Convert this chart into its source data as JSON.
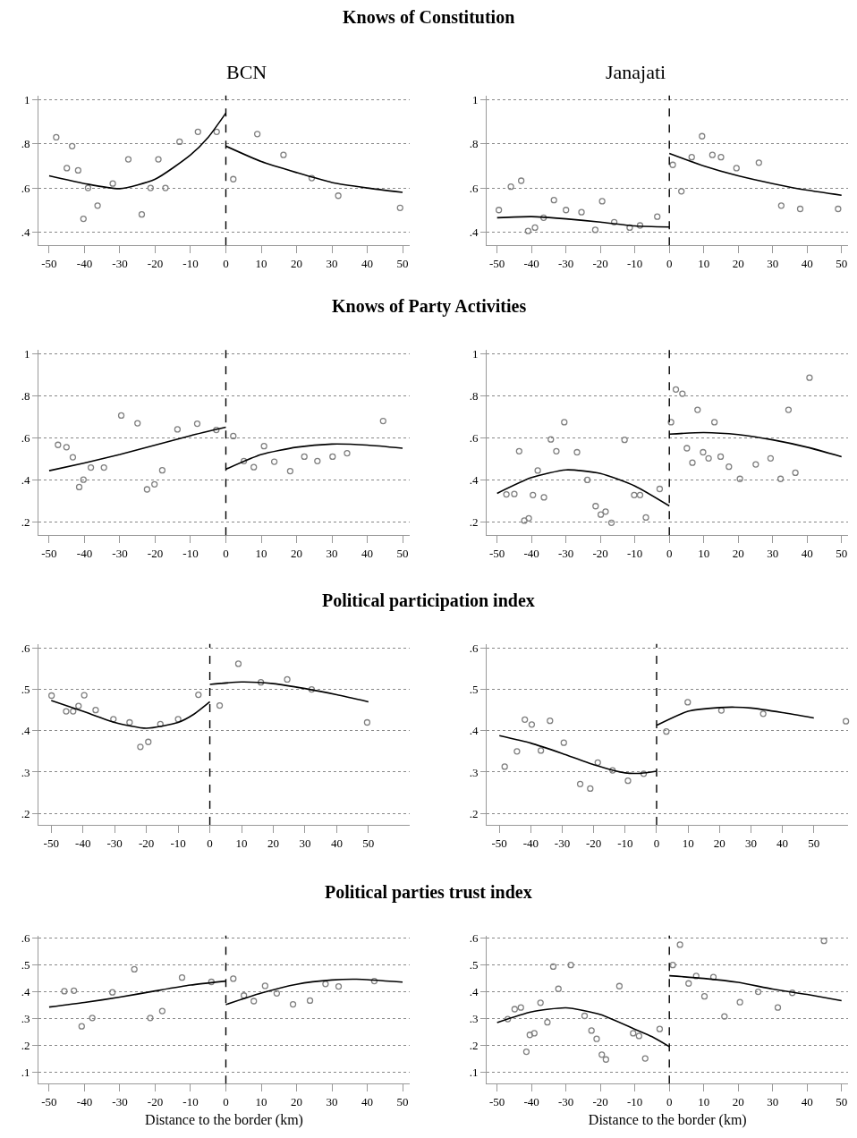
{
  "chart_data": [
    {
      "type": "scatter",
      "title": "Knows of Constitution",
      "subtitle": "BCN",
      "xlim": [
        -53,
        52
      ],
      "xticks": [
        -50,
        -40,
        -30,
        -20,
        -10,
        0,
        10,
        20,
        30,
        40,
        50
      ],
      "ylim": [
        0.34,
        1.02
      ],
      "yticks": [
        {
          "value": 0.4,
          "label": ".4"
        },
        {
          "value": 0.6,
          "label": ".6"
        },
        {
          "value": 0.8,
          "label": ".8"
        },
        1
      ],
      "grid": "y",
      "ref_lines": [
        {
          "axis": "x",
          "value": 0,
          "line_style": "dashed",
          "color": "#000000"
        }
      ],
      "series": [
        {
          "type": "scatter",
          "marker": "circle",
          "color": "#808080",
          "x": [
            -48,
            -45,
            -43.5,
            -41.8,
            -40.3,
            -39,
            -36.3,
            -32,
            -27.6,
            -23.8,
            -21.3,
            -19.1,
            -17.1,
            -13.1,
            -7.9,
            -2.6,
            2.1,
            8.9,
            16.3,
            24.3,
            31.8,
            49.3
          ],
          "values": [
            0.83,
            0.69,
            0.79,
            0.68,
            0.46,
            0.6,
            0.52,
            0.62,
            0.73,
            0.48,
            0.6,
            0.73,
            0.6,
            0.81,
            0.855,
            0.855,
            0.64,
            0.845,
            0.75,
            0.645,
            0.565,
            0.51
          ]
        },
        {
          "type": "line",
          "color": "#000000",
          "x": [
            -50,
            -40,
            -30,
            -20,
            -10,
            -5,
            0
          ],
          "values": [
            0.655,
            0.62,
            0.597,
            0.64,
            0.75,
            0.83,
            0.94
          ]
        },
        {
          "type": "line",
          "color": "#000000",
          "x": [
            0,
            10,
            20,
            30,
            40,
            50
          ],
          "values": [
            0.79,
            0.72,
            0.67,
            0.625,
            0.6,
            0.58
          ]
        }
      ]
    },
    {
      "type": "scatter",
      "subtitle": "Janajati",
      "xlim": [
        -53,
        52
      ],
      "xticks": [
        -50,
        -40,
        -30,
        -20,
        -10,
        0,
        10,
        20,
        30,
        40,
        50
      ],
      "ylim": [
        0.34,
        1.02
      ],
      "yticks": [
        {
          "value": 0.4,
          "label": ".4"
        },
        {
          "value": 0.6,
          "label": ".6"
        },
        {
          "value": 0.8,
          "label": ".8"
        },
        1
      ],
      "grid": "y",
      "ref_lines": [
        {
          "axis": "x",
          "value": 0,
          "line_style": "dashed",
          "color": "#000000"
        }
      ],
      "series": [
        {
          "type": "scatter",
          "marker": "circle",
          "color": "#808080",
          "x": [
            -49.5,
            -46,
            -43,
            -41,
            -39,
            -36.5,
            -33.5,
            -30,
            -25.5,
            -21.5,
            -19.5,
            -16,
            -11.5,
            -8.5,
            -3.5,
            1,
            3.5,
            6.5,
            9.5,
            12.5,
            15,
            19.5,
            26,
            32.5,
            38,
            49
          ],
          "values": [
            0.5,
            0.606,
            0.633,
            0.405,
            0.42,
            0.465,
            0.545,
            0.5,
            0.49,
            0.41,
            0.54,
            0.445,
            0.42,
            0.43,
            0.47,
            0.705,
            0.585,
            0.74,
            0.835,
            0.75,
            0.74,
            0.69,
            0.715,
            0.52,
            0.505,
            0.505
          ]
        },
        {
          "type": "line",
          "color": "#000000",
          "x": [
            -50,
            -40,
            -30,
            -20,
            -10,
            0
          ],
          "values": [
            0.465,
            0.47,
            0.46,
            0.445,
            0.428,
            0.423
          ]
        },
        {
          "type": "line",
          "color": "#000000",
          "x": [
            0,
            10,
            20,
            30,
            40,
            50
          ],
          "values": [
            0.757,
            0.7,
            0.655,
            0.62,
            0.59,
            0.567
          ]
        }
      ]
    },
    {
      "type": "scatter",
      "title": "Knows of Party Activities",
      "xlim": [
        -53,
        52
      ],
      "xticks": [
        -50,
        -40,
        -30,
        -20,
        -10,
        0,
        10,
        20,
        30,
        40,
        50
      ],
      "ylim": [
        0.136,
        1.02
      ],
      "yticks": [
        {
          "value": 0.2,
          "label": ".2"
        },
        {
          "value": 0.4,
          "label": ".4"
        },
        {
          "value": 0.6,
          "label": ".6"
        },
        {
          "value": 0.8,
          "label": ".8"
        },
        1
      ],
      "grid": "y",
      "ref_lines": [
        {
          "axis": "x",
          "value": 0,
          "line_style": "dashed",
          "color": "#000000"
        }
      ],
      "series": [
        {
          "type": "scatter",
          "marker": "circle",
          "color": "#808080",
          "x": [
            -47.5,
            -45.1,
            -43.3,
            -41.5,
            -40.3,
            -38.2,
            -34.5,
            -29.6,
            -25,
            -22.3,
            -20.2,
            -18,
            -13.7,
            -8.1,
            -2.7,
            2.1,
            5.1,
            7.9,
            10.8,
            13.7,
            18.2,
            22.2,
            25.9,
            30.2,
            34.3,
            44.5
          ],
          "values": [
            0.566,
            0.555,
            0.507,
            0.365,
            0.4,
            0.458,
            0.458,
            0.706,
            0.669,
            0.354,
            0.378,
            0.445,
            0.64,
            0.667,
            0.637,
            0.608,
            0.489,
            0.46,
            0.56,
            0.486,
            0.441,
            0.51,
            0.489,
            0.51,
            0.526,
            0.68
          ]
        },
        {
          "type": "line",
          "color": "#000000",
          "x": [
            -50,
            -40,
            -30,
            -20,
            -10,
            0
          ],
          "values": [
            0.443,
            0.48,
            0.52,
            0.565,
            0.61,
            0.65
          ]
        },
        {
          "type": "line",
          "color": "#000000",
          "x": [
            0,
            10,
            20,
            30,
            40,
            50
          ],
          "values": [
            0.45,
            0.52,
            0.555,
            0.57,
            0.565,
            0.55
          ]
        }
      ]
    },
    {
      "type": "scatter",
      "xlim": [
        -53,
        52
      ],
      "xticks": [
        -50,
        -40,
        -30,
        -20,
        -10,
        0,
        10,
        20,
        30,
        40,
        50
      ],
      "ylim": [
        0.136,
        1.02
      ],
      "yticks": [
        {
          "value": 0.2,
          "label": ".2"
        },
        {
          "value": 0.4,
          "label": ".4"
        },
        {
          "value": 0.6,
          "label": ".6"
        },
        {
          "value": 0.8,
          "label": ".8"
        },
        1
      ],
      "grid": "y",
      "ref_lines": [
        {
          "axis": "x",
          "value": 0,
          "line_style": "dashed",
          "color": "#000000"
        }
      ],
      "series": [
        {
          "type": "scatter",
          "marker": "circle",
          "color": "#808080",
          "x": [
            -47.3,
            -45,
            -43.6,
            -42.1,
            -40.8,
            -39.6,
            -38.2,
            -36.4,
            -34.4,
            -32.8,
            -30.5,
            -26.8,
            -23.8,
            -21.4,
            -19.9,
            -18.5,
            -16.8,
            -13,
            -10.2,
            -8.5,
            -6.8,
            -2.8,
            0.5,
            1.9,
            3.8,
            5.1,
            6.7,
            8.2,
            9.8,
            11.4,
            13.1,
            14.9,
            17.3,
            20.5,
            25.1,
            29.4,
            32.3,
            34.6,
            36.6,
            40.7
          ],
          "values": [
            0.33,
            0.332,
            0.536,
            0.205,
            0.216,
            0.327,
            0.444,
            0.316,
            0.592,
            0.536,
            0.674,
            0.531,
            0.399,
            0.274,
            0.234,
            0.248,
            0.195,
            0.59,
            0.327,
            0.327,
            0.22,
            0.356,
            0.674,
            0.83,
            0.81,
            0.55,
            0.481,
            0.733,
            0.531,
            0.502,
            0.674,
            0.51,
            0.462,
            0.404,
            0.473,
            0.502,
            0.404,
            0.733,
            0.433,
            0.886
          ]
        },
        {
          "type": "line",
          "color": "#000000",
          "x": [
            -50,
            -40,
            -30,
            -20,
            -10,
            0
          ],
          "values": [
            0.335,
            0.41,
            0.447,
            0.43,
            0.37,
            0.275
          ]
        },
        {
          "type": "line",
          "color": "#000000",
          "x": [
            0,
            10,
            20,
            30,
            40,
            50
          ],
          "values": [
            0.617,
            0.625,
            0.615,
            0.59,
            0.555,
            0.51
          ]
        }
      ]
    },
    {
      "type": "scatter",
      "title": "Political participation index",
      "xlim": [
        -54,
        63
      ],
      "xticks": [
        -50,
        -40,
        -30,
        -20,
        -10,
        0,
        10,
        20,
        30,
        40,
        50
      ],
      "ylim": [
        0.172,
        0.61
      ],
      "yticks": [
        {
          "value": 0.2,
          "label": ".2"
        },
        {
          "value": 0.3,
          "label": ".3"
        },
        {
          "value": 0.4,
          "label": ".4"
        },
        {
          "value": 0.5,
          "label": ".5"
        },
        {
          "value": 0.6,
          "label": ".6"
        }
      ],
      "grid": "y",
      "ref_lines": [
        {
          "axis": "x",
          "value": 0,
          "line_style": "dashed",
          "color": "#000000"
        }
      ],
      "series": [
        {
          "type": "scatter",
          "marker": "circle",
          "color": "#808080",
          "x": [
            -49.9,
            -45.3,
            -43.1,
            -41.4,
            -39.6,
            -36,
            -30.4,
            -25.3,
            -21.9,
            -19.4,
            -15.6,
            -10,
            -3.6,
            3.1,
            9,
            16.1,
            24.4,
            32.1,
            49.6
          ],
          "values": [
            0.485,
            0.447,
            0.447,
            0.46,
            0.486,
            0.45,
            0.428,
            0.42,
            0.361,
            0.373,
            0.416,
            0.428,
            0.487,
            0.461,
            0.562,
            0.517,
            0.524,
            0.5,
            0.42
          ]
        },
        {
          "type": "line",
          "color": "#000000",
          "x": [
            -50,
            -40,
            -30,
            -20,
            -10,
            -5,
            0
          ],
          "values": [
            0.473,
            0.447,
            0.42,
            0.406,
            0.42,
            0.44,
            0.47
          ]
        },
        {
          "type": "line",
          "color": "#000000",
          "x": [
            0,
            10,
            20,
            30,
            40,
            50
          ],
          "values": [
            0.512,
            0.518,
            0.514,
            0.502,
            0.487,
            0.47
          ]
        }
      ]
    },
    {
      "type": "scatter",
      "xlim": [
        -54,
        61
      ],
      "xticks": [
        -50,
        -40,
        -30,
        -20,
        -10,
        0,
        10,
        20,
        30,
        40,
        50
      ],
      "ylim": [
        0.172,
        0.61
      ],
      "yticks": [
        {
          "value": 0.2,
          "label": ".2"
        },
        {
          "value": 0.3,
          "label": ".3"
        },
        {
          "value": 0.4,
          "label": ".4"
        },
        {
          "value": 0.5,
          "label": ".5"
        },
        {
          "value": 0.6,
          "label": ".6"
        }
      ],
      "grid": "y",
      "ref_lines": [
        {
          "axis": "x",
          "value": 0,
          "line_style": "dashed",
          "color": "#000000"
        }
      ],
      "series": [
        {
          "type": "scatter",
          "marker": "circle",
          "color": "#808080",
          "x": [
            -48.3,
            -44.4,
            -41.9,
            -39.7,
            -36.8,
            -33.9,
            -29.5,
            -24.3,
            -21.1,
            -18.7,
            -14,
            -9.1,
            -4.1,
            3.1,
            9.9,
            20.6,
            33.9,
            60.2
          ],
          "values": [
            0.313,
            0.35,
            0.427,
            0.415,
            0.352,
            0.424,
            0.371,
            0.271,
            0.26,
            0.323,
            0.304,
            0.279,
            0.296,
            0.398,
            0.469,
            0.449,
            0.441,
            0.423
          ]
        },
        {
          "type": "line",
          "color": "#000000",
          "x": [
            -50,
            -40,
            -30,
            -20,
            -10,
            -5,
            0
          ],
          "values": [
            0.388,
            0.37,
            0.345,
            0.318,
            0.298,
            0.297,
            0.302
          ]
        },
        {
          "type": "line",
          "color": "#000000",
          "x": [
            0,
            10,
            20,
            25,
            30,
            40,
            50
          ],
          "values": [
            0.413,
            0.447,
            0.456,
            0.457,
            0.455,
            0.444,
            0.431
          ]
        }
      ]
    },
    {
      "type": "scatter",
      "title": "Political parties trust index",
      "xlabel": "Distance to the border (km)",
      "xlim": [
        -53,
        52
      ],
      "xticks": [
        -50,
        -40,
        -30,
        -20,
        -10,
        0,
        10,
        20,
        30,
        40,
        50
      ],
      "ylim": [
        0.057,
        0.61
      ],
      "yticks": [
        {
          "value": 0.1,
          "label": ".1"
        },
        {
          "value": 0.2,
          "label": ".2"
        },
        {
          "value": 0.3,
          "label": ".3"
        },
        {
          "value": 0.4,
          "label": ".4"
        },
        {
          "value": 0.5,
          "label": ".5"
        },
        {
          "value": 0.6,
          "label": ".6"
        }
      ],
      "grid": "y",
      "ref_lines": [
        {
          "axis": "x",
          "value": 0,
          "line_style": "dashed",
          "color": "#000000"
        }
      ],
      "series": [
        {
          "type": "scatter",
          "marker": "circle",
          "color": "#808080",
          "x": [
            -45.7,
            -43,
            -40.8,
            -37.8,
            -32.1,
            -25.9,
            -21.4,
            -18,
            -12.4,
            -4.1,
            2.1,
            5.1,
            7.9,
            11.1,
            14.4,
            19,
            23.8,
            28.2,
            31.9,
            42
          ],
          "values": [
            0.402,
            0.404,
            0.271,
            0.302,
            0.398,
            0.484,
            0.302,
            0.328,
            0.453,
            0.437,
            0.449,
            0.386,
            0.365,
            0.422,
            0.394,
            0.353,
            0.367,
            0.429,
            0.42,
            0.44
          ]
        },
        {
          "type": "line",
          "color": "#000000",
          "x": [
            -50,
            -40,
            -30,
            -20,
            -10,
            0
          ],
          "values": [
            0.343,
            0.36,
            0.38,
            0.403,
            0.425,
            0.44
          ]
        },
        {
          "type": "line",
          "color": "#000000",
          "x": [
            0,
            10,
            20,
            30,
            37,
            50
          ],
          "values": [
            0.352,
            0.395,
            0.428,
            0.444,
            0.447,
            0.436
          ]
        }
      ]
    },
    {
      "type": "scatter",
      "xlabel": "Distance to the border (km)",
      "xlim": [
        -53,
        52
      ],
      "xticks": [
        -50,
        -40,
        -30,
        -20,
        -10,
        0,
        10,
        20,
        30,
        40,
        50
      ],
      "ylim": [
        0.057,
        0.61
      ],
      "yticks": [
        {
          "value": 0.1,
          "label": ".1"
        },
        {
          "value": 0.2,
          "label": ".2"
        },
        {
          "value": 0.3,
          "label": ".3"
        },
        {
          "value": 0.4,
          "label": ".4"
        },
        {
          "value": 0.5,
          "label": ".5"
        },
        {
          "value": 0.6,
          "label": ".6"
        }
      ],
      "grid": "y",
      "ref_lines": [
        {
          "axis": "x",
          "value": 0,
          "line_style": "dashed",
          "color": "#000000"
        }
      ],
      "series": [
        {
          "type": "scatter",
          "marker": "circle",
          "color": "#808080",
          "x": [
            -46.9,
            -44.9,
            -43.1,
            -41.5,
            -40.5,
            -39.2,
            -37.4,
            -35.4,
            -33.7,
            -32.2,
            -28.6,
            -24.6,
            -22.6,
            -21.1,
            -19.6,
            -18.4,
            -14.5,
            -10.5,
            -8.8,
            -7,
            -2.8,
            1,
            3.1,
            5.6,
            7.8,
            10.2,
            12.8,
            16,
            20.5,
            25.8,
            31.5,
            35.7,
            44.9
          ],
          "values": [
            0.298,
            0.335,
            0.341,
            0.176,
            0.239,
            0.245,
            0.359,
            0.286,
            0.494,
            0.411,
            0.5,
            0.31,
            0.255,
            0.224,
            0.165,
            0.147,
            0.421,
            0.245,
            0.235,
            0.151,
            0.261,
            0.5,
            0.576,
            0.431,
            0.459,
            0.383,
            0.455,
            0.308,
            0.361,
            0.4,
            0.341,
            0.396,
            0.59
          ]
        },
        {
          "type": "line",
          "color": "#000000",
          "x": [
            -50,
            -40,
            -30,
            -20,
            -10,
            -5,
            0
          ],
          "values": [
            0.285,
            0.325,
            0.34,
            0.315,
            0.26,
            0.232,
            0.195
          ]
        },
        {
          "type": "line",
          "color": "#000000",
          "x": [
            0,
            10,
            20,
            30,
            40,
            50
          ],
          "values": [
            0.46,
            0.45,
            0.435,
            0.41,
            0.39,
            0.367
          ]
        }
      ]
    }
  ]
}
